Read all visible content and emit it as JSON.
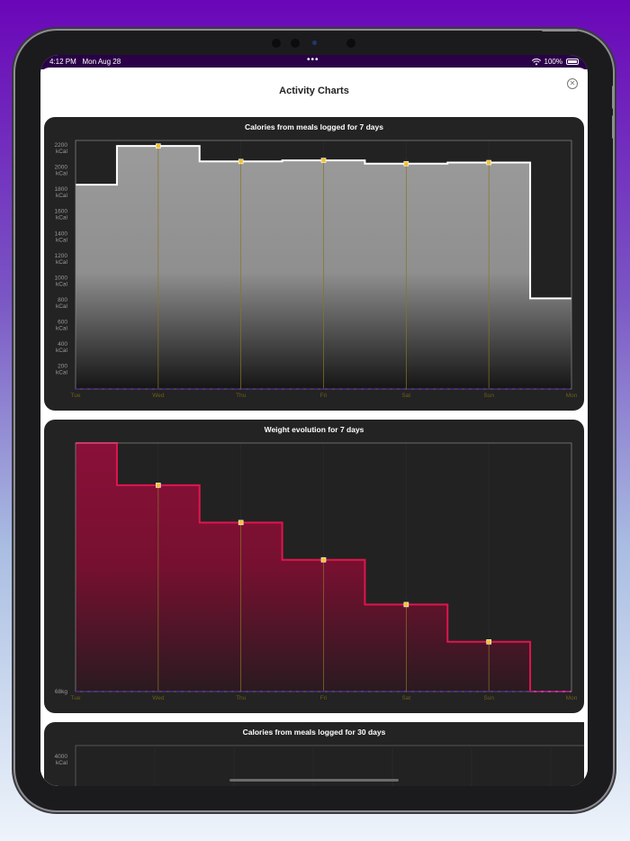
{
  "status_bar": {
    "time": "4:12 PM",
    "date": "Mon Aug 28",
    "battery": "100%"
  },
  "sheet": {
    "title": "Activity Charts",
    "close_icon": "close-circle-icon"
  },
  "colors": {
    "calories_fill": "#9b9b9b",
    "calories_line": "#ffffff",
    "weight_fill": "#8a1039",
    "weight_line": "#e0154f",
    "point": "#f2c230",
    "card_bg": "#232323"
  },
  "chart_data": [
    {
      "type": "area",
      "title": "Calories from meals logged for 7 days",
      "categories": [
        "Tue",
        "Wed",
        "Thu",
        "Fri",
        "Sat",
        "Sun",
        "Mon"
      ],
      "values": [
        1850,
        2200,
        2060,
        2070,
        2040,
        2050,
        820
      ],
      "ylabel": "kCal",
      "ylim": [
        0,
        2250
      ],
      "yticks": [
        {
          "value": "2200",
          "unit": "kCal",
          "v": 2200
        },
        {
          "value": "2000",
          "unit": "kCal",
          "v": 2000
        },
        {
          "value": "1800",
          "unit": "kCal",
          "v": 1800
        },
        {
          "value": "1600",
          "unit": "kCal",
          "v": 1600
        },
        {
          "value": "1400",
          "unit": "kCal",
          "v": 1400
        },
        {
          "value": "1200",
          "unit": "kCal",
          "v": 1200
        },
        {
          "value": "1000",
          "unit": "kCal",
          "v": 1000
        },
        {
          "value": "800",
          "unit": "kCal",
          "v": 800
        },
        {
          "value": "600",
          "unit": "kCal",
          "v": 600
        },
        {
          "value": "400",
          "unit": "kCal",
          "v": 400
        },
        {
          "value": "200",
          "unit": "kCal",
          "v": 200
        }
      ]
    },
    {
      "type": "area",
      "title": "Weight evolution for 7 days",
      "categories": [
        "Tue",
        "Wed",
        "Thu",
        "Fri",
        "Sat",
        "Sun",
        "Mon"
      ],
      "values": [
        100,
        83,
        68,
        53,
        35,
        20,
        0
      ],
      "ylim": [
        0,
        100
      ],
      "yticks": [
        {
          "value": "68kg",
          "unit": "",
          "v": 0
        }
      ]
    },
    {
      "type": "area",
      "title": "Calories from meals logged for 30 days",
      "categories": [],
      "values": [],
      "ylim": [
        0,
        4250
      ],
      "yticks": [
        {
          "value": "4000",
          "unit": "kCal",
          "v": 4000
        }
      ]
    }
  ]
}
